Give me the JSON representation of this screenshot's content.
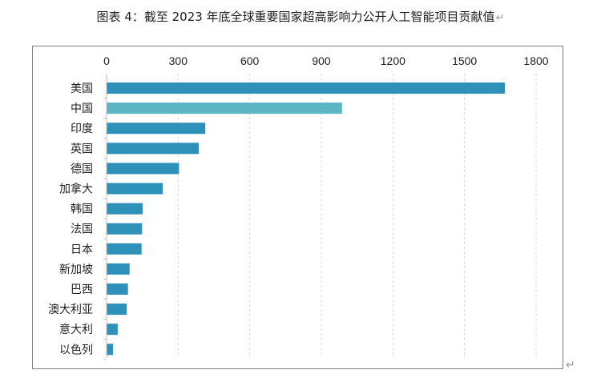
{
  "title": "图表 4：截至 2023 年底全球重要国家超高影响力公开人工智能项目贡献值",
  "title_return_mark": "↵",
  "outer_return_mark": "↵",
  "chart_data": {
    "type": "bar",
    "orientation": "horizontal",
    "title": "图表 4：截至 2023 年底全球重要国家超高影响力公开人工智能项目贡献值",
    "xlabel": "",
    "ylabel": "",
    "categories": [
      "美国",
      "中国",
      "印度",
      "英国",
      "德国",
      "加拿大",
      "韩国",
      "法国",
      "日本",
      "新加坡",
      "巴西",
      "澳大利亚",
      "意大利",
      "以色列"
    ],
    "values": [
      1668,
      985,
      412,
      385,
      302,
      234,
      150,
      147,
      145,
      95,
      88,
      83,
      45,
      25
    ],
    "xlim": [
      0,
      1800
    ],
    "ticks": [
      0,
      300,
      600,
      900,
      1200,
      1500,
      1800
    ],
    "axis_position": "top",
    "grid": "vertical-dashed",
    "colors": {
      "default": "#2E91B9",
      "highlight": "#5BB5C2",
      "highlight_category": "中国",
      "grid": "#d9d9d9",
      "axis": "#bfbfbf"
    }
  }
}
